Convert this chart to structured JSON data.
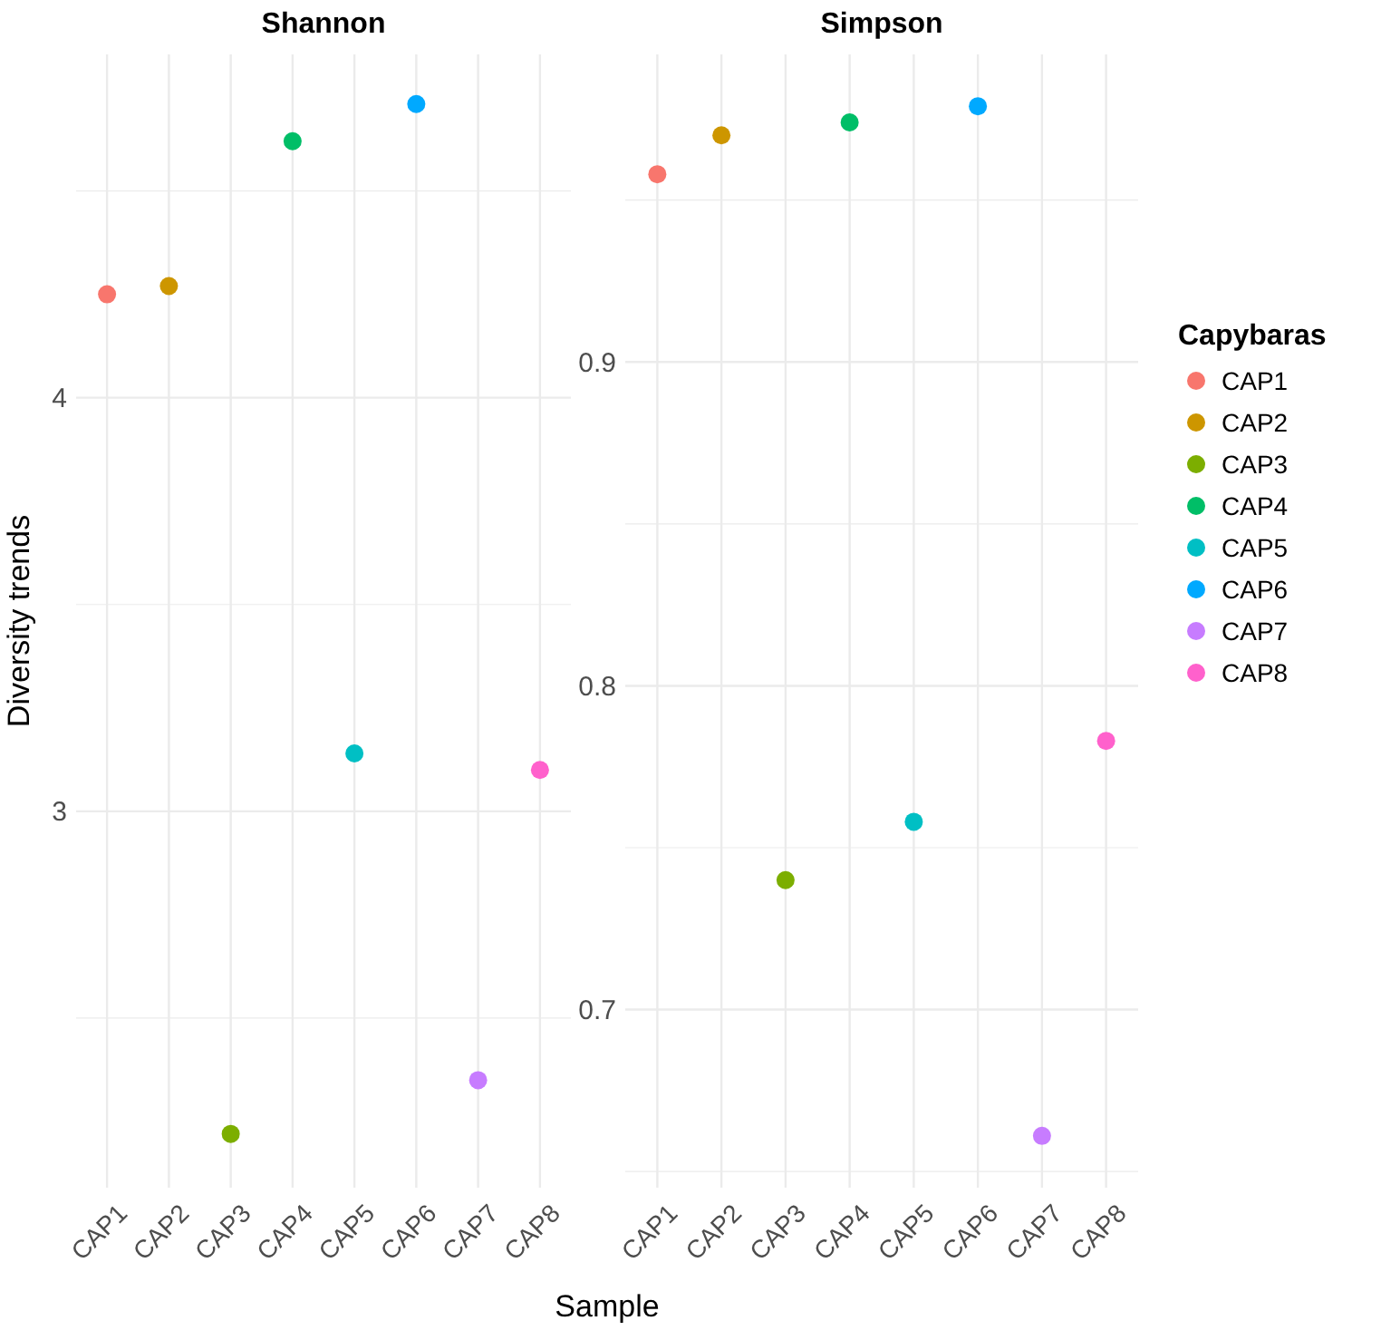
{
  "chart_data": [
    {
      "type": "scatter",
      "title": "Shannon",
      "xlabel": "Sample",
      "ylabel": "Diversity trends",
      "categories": [
        "CAP1",
        "CAP2",
        "CAP3",
        "CAP4",
        "CAP5",
        "CAP6",
        "CAP7",
        "CAP8"
      ],
      "series": [
        {
          "name": "CAP1",
          "color": "#f8766d",
          "values": [
            4.25,
            null,
            null,
            null,
            null,
            null,
            null,
            null
          ]
        },
        {
          "name": "CAP2",
          "color": "#cd9600",
          "values": [
            null,
            4.27,
            null,
            null,
            null,
            null,
            null,
            null
          ]
        },
        {
          "name": "CAP3",
          "color": "#7cae00",
          "values": [
            null,
            null,
            2.22,
            null,
            null,
            null,
            null,
            null
          ]
        },
        {
          "name": "CAP4",
          "color": "#00be67",
          "values": [
            null,
            null,
            null,
            4.62,
            null,
            null,
            null,
            null
          ]
        },
        {
          "name": "CAP5",
          "color": "#00bfc4",
          "values": [
            null,
            null,
            null,
            null,
            3.14,
            null,
            null,
            null
          ]
        },
        {
          "name": "CAP6",
          "color": "#00a9ff",
          "values": [
            null,
            null,
            null,
            null,
            null,
            4.71,
            null,
            null
          ]
        },
        {
          "name": "CAP7",
          "color": "#c77cff",
          "values": [
            null,
            null,
            null,
            null,
            null,
            null,
            2.35,
            null
          ]
        },
        {
          "name": "CAP8",
          "color": "#ff61cc",
          "values": [
            null,
            null,
            null,
            null,
            null,
            null,
            null,
            3.1
          ]
        }
      ],
      "ylim": [
        2.09,
        4.83
      ],
      "yticks": [
        3,
        4
      ],
      "grid": true,
      "marker": "circle",
      "legend": "right",
      "legend_title": "Capybaras"
    },
    {
      "type": "scatter",
      "title": "Simpson",
      "categories": [
        "CAP1",
        "CAP2",
        "CAP3",
        "CAP4",
        "CAP5",
        "CAP6",
        "CAP7",
        "CAP8"
      ],
      "series": [
        {
          "color": "#f8766d",
          "values": [
            0.958,
            null,
            null,
            null,
            null,
            null,
            null,
            null
          ]
        },
        {
          "color": "#cd9600",
          "values": [
            null,
            0.97,
            null,
            null,
            null,
            null,
            null,
            null
          ]
        },
        {
          "color": "#7cae00",
          "values": [
            null,
            null,
            0.74,
            null,
            null,
            null,
            null,
            null
          ]
        },
        {
          "color": "#00be67",
          "values": [
            null,
            null,
            null,
            0.974,
            null,
            null,
            null,
            null
          ]
        },
        {
          "color": "#00bfc4",
          "values": [
            null,
            null,
            null,
            null,
            0.758,
            null,
            null,
            null
          ]
        },
        {
          "color": "#00a9ff",
          "values": [
            null,
            null,
            null,
            null,
            null,
            0.979,
            null,
            null
          ]
        },
        {
          "color": "#c77cff",
          "values": [
            null,
            null,
            null,
            null,
            null,
            null,
            0.661,
            null
          ]
        },
        {
          "color": "#ff61cc",
          "values": [
            null,
            null,
            null,
            null,
            null,
            null,
            null,
            0.783
          ]
        }
      ],
      "ylim": [
        0.645,
        0.995
      ],
      "yticks": [
        0.7,
        0.8,
        0.9
      ],
      "grid": true,
      "marker": "circle"
    }
  ]
}
